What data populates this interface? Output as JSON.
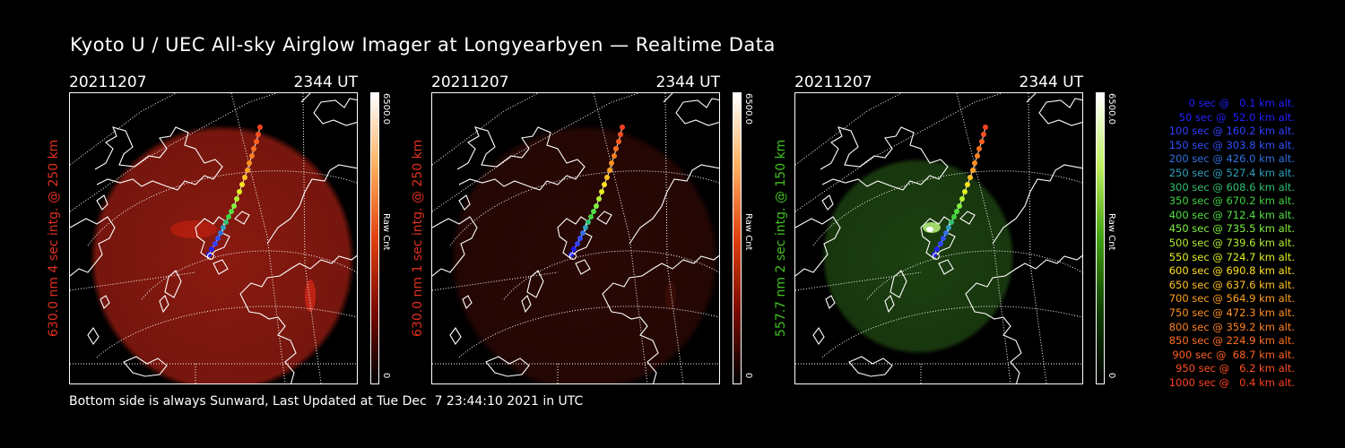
{
  "title": "Kyoto U / UEC All-sky Airglow Imager at Longyearbyen — Realtime Data",
  "footer": "Bottom side is always Sunward, Last Updated at Tue Dec  7 23:44:10 2021 in UTC",
  "panels": [
    {
      "date": "20211207",
      "time": "2344 UT",
      "ylabel": "630.0 nm 4 sec intg. @ 250 km",
      "label_color": "#e03020",
      "cbar_top": "6500.0",
      "cbar_label": "Raw Cnt",
      "cbar_zero": "0",
      "emission_color": "#8a1a10",
      "colormap": [
        "#ffffff",
        "#ffb060",
        "#e04010",
        "#7a0a00",
        "#000000"
      ],
      "glow": "red"
    },
    {
      "date": "20211207",
      "time": "2344 UT",
      "ylabel": "630.0 nm 1 sec intg. @ 250 km",
      "label_color": "#e03020",
      "cbar_top": "6500.0",
      "cbar_label": "Raw Cnt",
      "cbar_zero": "0",
      "emission_color": "#2a0805",
      "colormap": [
        "#ffffff",
        "#ffb060",
        "#e04010",
        "#7a0a00",
        "#000000"
      ],
      "glow": "dim"
    },
    {
      "date": "20211207",
      "time": "2344 UT",
      "ylabel": "557.7 nm 2 sec intg. @ 150 km",
      "label_color": "#40c020",
      "cbar_top": "6500.0",
      "cbar_label": "Raw Cnt",
      "cbar_zero": "0",
      "emission_color": "#1c4010",
      "colormap": [
        "#ffffff",
        "#c0f060",
        "#40a010",
        "#104000",
        "#000000"
      ],
      "glow": "green"
    }
  ],
  "legend": [
    {
      "text": "0 sec @   0.1 km alt.",
      "color": "#2020ff"
    },
    {
      "text": "50 sec @  52.0 km alt.",
      "color": "#2020ff"
    },
    {
      "text": "100 sec @ 160.2 km alt.",
      "color": "#3040ff"
    },
    {
      "text": "150 sec @ 303.8 km alt.",
      "color": "#3050ff"
    },
    {
      "text": "200 sec @ 426.0 km alt.",
      "color": "#3070e0"
    },
    {
      "text": "250 sec @ 527.4 km alt.",
      "color": "#30a0c0"
    },
    {
      "text": "300 sec @ 608.6 km alt.",
      "color": "#30c070"
    },
    {
      "text": "350 sec @ 670.2 km alt.",
      "color": "#40d040"
    },
    {
      "text": "400 sec @ 712.4 km alt.",
      "color": "#50e040"
    },
    {
      "text": "450 sec @ 735.5 km alt.",
      "color": "#80f040"
    },
    {
      "text": "500 sec @ 739.6 km alt.",
      "color": "#b0f030"
    },
    {
      "text": "550 sec @ 724.7 km alt.",
      "color": "#e0f020"
    },
    {
      "text": "600 sec @ 690.8 km alt.",
      "color": "#ffe020"
    },
    {
      "text": "650 sec @ 637.6 km alt.",
      "color": "#ffc020"
    },
    {
      "text": "700 sec @ 564.9 km alt.",
      "color": "#ffa020"
    },
    {
      "text": "750 sec @ 472.3 km alt.",
      "color": "#ff9020"
    },
    {
      "text": "800 sec @ 359.2 km alt.",
      "color": "#ff8020"
    },
    {
      "text": "850 sec @ 224.9 km alt.",
      "color": "#ff7020"
    },
    {
      "text": "900 sec @  68.7 km alt.",
      "color": "#ff6020"
    },
    {
      "text": "950 sec @   6.2 km alt.",
      "color": "#ff5020"
    },
    {
      "text": "1000 sec @   0.4 km alt.",
      "color": "#ff4020"
    }
  ]
}
